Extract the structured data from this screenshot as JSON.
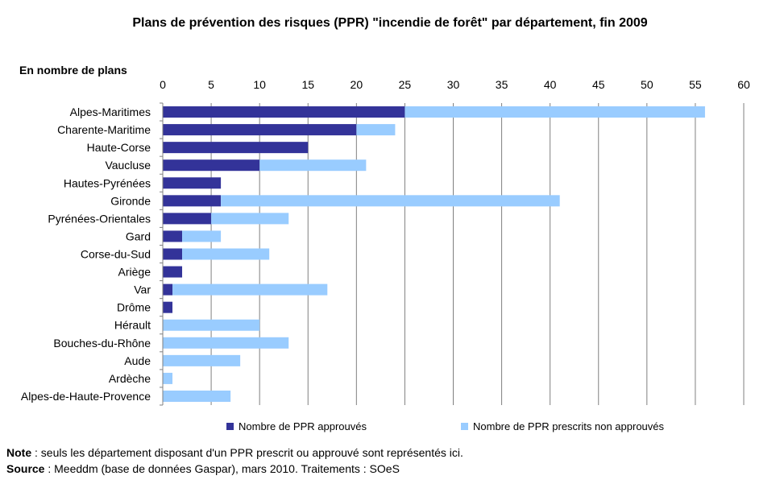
{
  "chart_data": {
    "type": "bar",
    "orientation": "horizontal",
    "stacked": true,
    "title": "Plans de prévention des risques (PPR) \"incendie de forêt\" par département, fin 2009",
    "unit_label": "En nombre de plans",
    "categories": [
      "Alpes-Maritimes",
      "Charente-Maritime",
      "Haute-Corse",
      "Vaucluse",
      "Hautes-Pyrénées",
      "Gironde",
      "Pyrénées-Orientales",
      "Gard",
      "Corse-du-Sud",
      "Ariège",
      "Var",
      "Drôme",
      "Hérault",
      "Bouches-du-Rhône",
      "Aude",
      "Ardèche",
      "Alpes-de-Haute-Provence"
    ],
    "series": [
      {
        "name": "Nombre de PPR approuvés",
        "color": "#333399",
        "values": [
          25,
          20,
          15,
          10,
          6,
          6,
          5,
          2,
          2,
          2,
          1,
          1,
          0,
          0,
          0,
          0,
          0
        ]
      },
      {
        "name": "Nombre de PPR prescrits non approuvés",
        "color": "#99ccff",
        "values": [
          31,
          4,
          0,
          11,
          0,
          35,
          8,
          4,
          9,
          0,
          16,
          0,
          10,
          13,
          8,
          1,
          7
        ]
      }
    ],
    "xlim": [
      0,
      60
    ],
    "xticks": [
      "0",
      "5",
      "10",
      "15",
      "20",
      "25",
      "30",
      "35",
      "40",
      "45",
      "50",
      "55",
      "60"
    ],
    "x_axis_position": "top",
    "grid": true,
    "legend_position": "bottom"
  },
  "footer": {
    "note_label": "Note",
    "note_text": " : seuls les département disposant d'un PPR prescrit ou approuvé sont représentés ici.",
    "source_label": "Source",
    "source_text": " : Meeddm (base de données Gaspar), mars 2010. Traitements : SOeS"
  }
}
